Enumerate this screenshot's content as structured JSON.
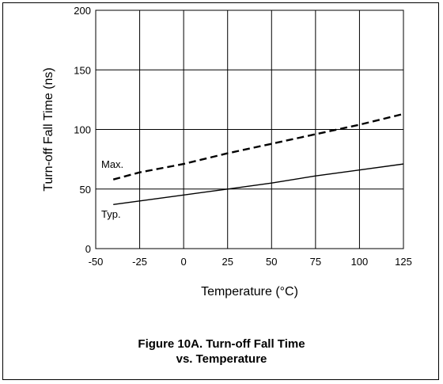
{
  "chart_data": {
    "type": "line",
    "title": "",
    "xlabel": "Temperature (°C)",
    "ylabel": "Turn-off  Fall Time (ns)",
    "xlim": [
      -50,
      125
    ],
    "ylim": [
      0,
      200
    ],
    "x_ticks": [
      -50,
      -25,
      0,
      25,
      50,
      75,
      100,
      125
    ],
    "y_ticks": [
      0,
      50,
      100,
      150,
      200
    ],
    "grid": true,
    "legend": "none",
    "series": [
      {
        "name": "Max.",
        "style": "dashed",
        "color": "#000000",
        "x": [
          -40,
          -25,
          0,
          25,
          50,
          75,
          100,
          125
        ],
        "y": [
          58,
          64,
          71,
          80,
          88,
          96,
          104,
          113
        ]
      },
      {
        "name": "Typ.",
        "style": "solid",
        "color": "#000000",
        "x": [
          -40,
          -25,
          0,
          25,
          50,
          75,
          100,
          125
        ],
        "y": [
          37,
          40,
          45,
          50,
          55,
          61,
          66,
          71
        ]
      }
    ]
  },
  "caption": {
    "line1": "Figure 10A. Turn-off Fall Time",
    "line2": "vs. Temperature"
  }
}
